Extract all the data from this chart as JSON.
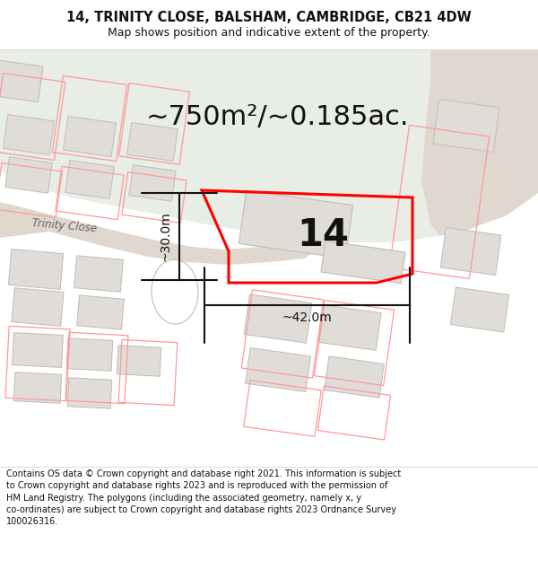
{
  "title_line1": "14, TRINITY CLOSE, BALSHAM, CAMBRIDGE, CB21 4DW",
  "title_line2": "Map shows position and indicative extent of the property.",
  "area_text": "~750m²/~0.185ac.",
  "label_14": "14",
  "dim_width": "~42.0m",
  "dim_height": "~30.0m",
  "street_label": "Trinity Close",
  "footer_text": "Contains OS data © Crown copyright and database right 2021. This information is subject to Crown copyright and database rights 2023 and is reproduced with the permission of HM Land Registry. The polygons (including the associated geometry, namely x, y co-ordinates) are subject to Crown copyright and database rights 2023 Ordnance Survey 100026316.",
  "bg_map_color": "#f5f3f0",
  "bg_green_color": "#e8ede5",
  "road_color": "#e0d8ce",
  "building_fill": "#e0dcd8",
  "building_outline": "#c8c4c0",
  "red_outline_color": "#ff0000",
  "red_neighbor_color": "#ff9999",
  "dim_line_color": "#111111",
  "title_bg": "#ffffff",
  "footer_bg": "#ffffff",
  "gray_outline_color": "#c0bcb8",
  "title_fontsize": 10.5,
  "subtitle_fontsize": 9,
  "area_fontsize": 22,
  "label_fontsize": 30,
  "dim_fontsize": 10,
  "street_fontsize": 8.5
}
